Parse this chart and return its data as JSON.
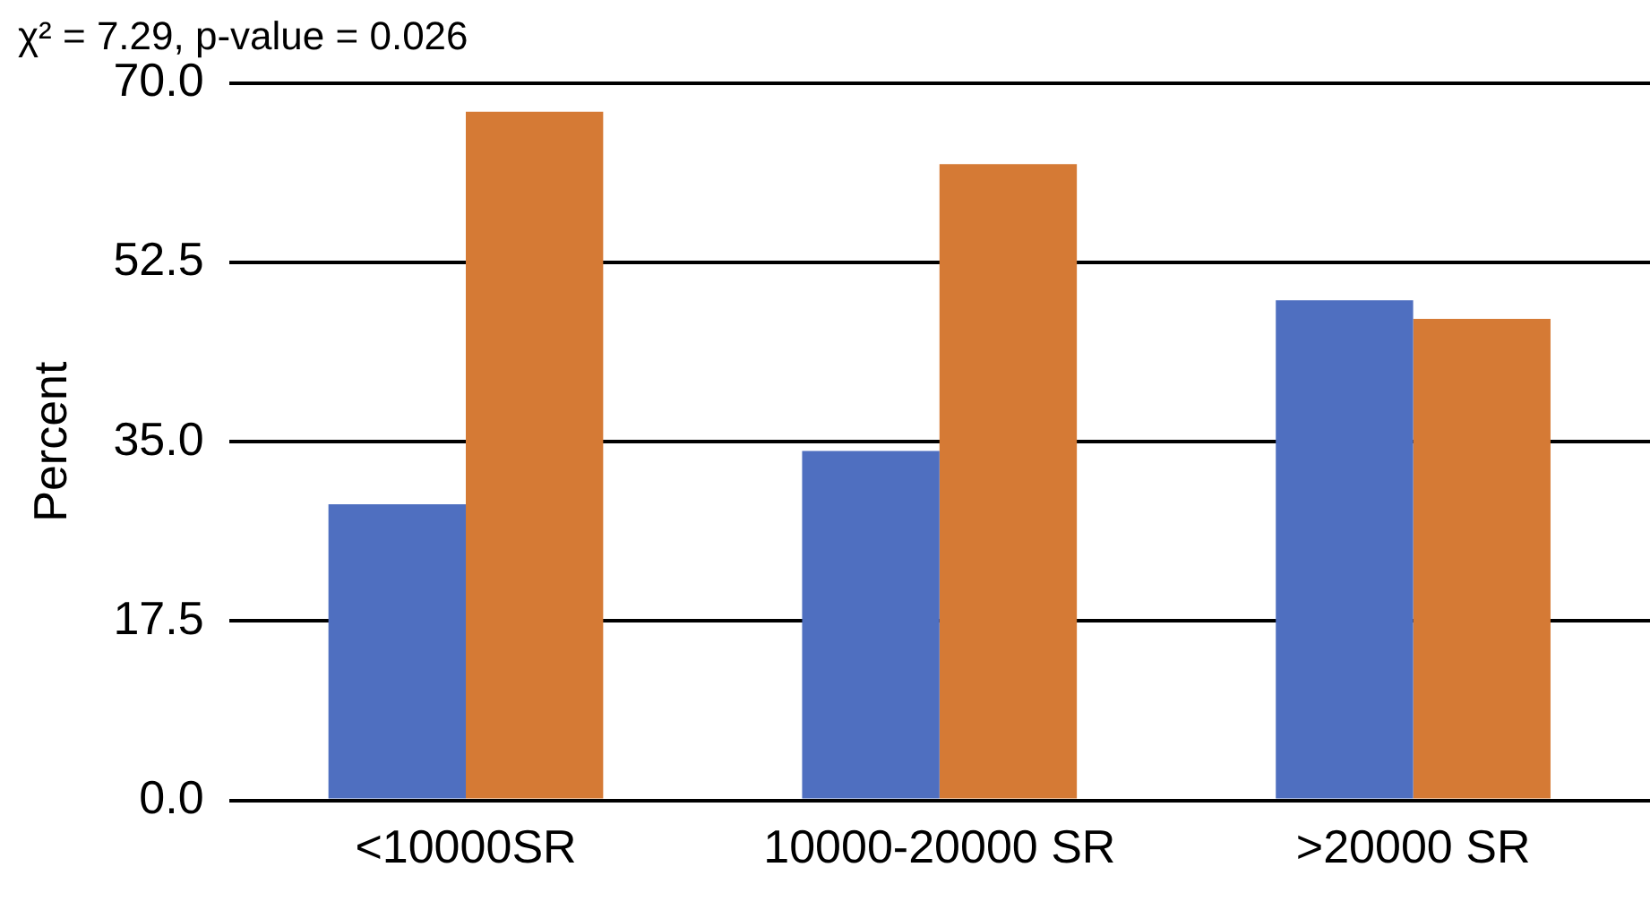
{
  "chart_data": {
    "type": "bar",
    "title": "χ² = 7.29, p-value = 0.026",
    "ylabel": "Percent",
    "categories": [
      "<10000SR",
      "10000-20000 SR",
      ">20000 SR"
    ],
    "series": [
      {
        "color": "#4f6fc0",
        "values": [
          28.9,
          34.1,
          48.8
        ]
      },
      {
        "color": "#d57a35",
        "values": [
          67.2,
          62.1,
          47.0
        ]
      }
    ],
    "ylim": [
      0,
      70
    ],
    "yticks": [
      {
        "value": 0,
        "label": "0.0"
      },
      {
        "value": 17.5,
        "label": "17.5"
      },
      {
        "value": 35,
        "label": "35.0"
      },
      {
        "value": 52.5,
        "label": "52.5"
      },
      {
        "value": 70,
        "label": "70.0"
      }
    ],
    "grid": "y",
    "legend": false
  }
}
